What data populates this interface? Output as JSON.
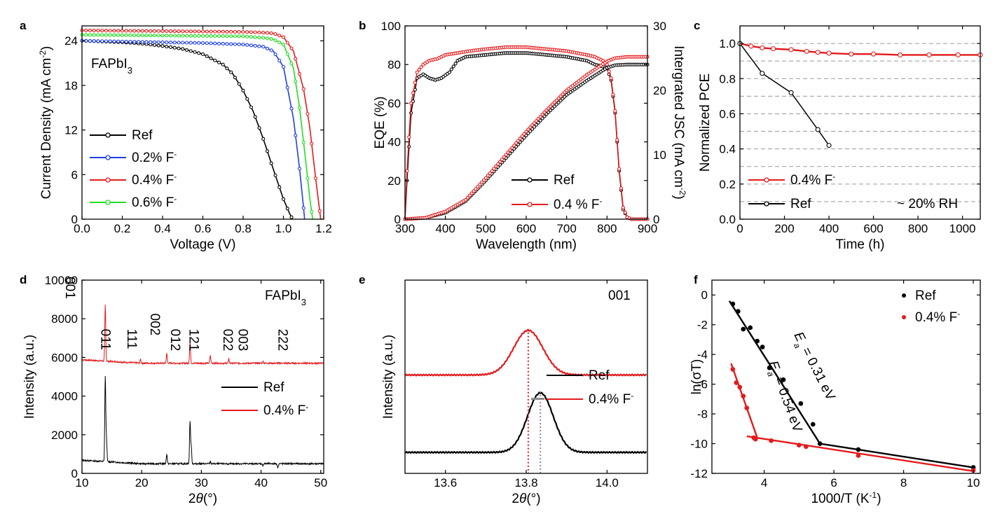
{
  "colors": {
    "black": "#000000",
    "red": "#e41a1c",
    "blue": "#1f3fe0",
    "green": "#22dd22",
    "gray": "#8c8c8c"
  },
  "chart_data": [
    {
      "panel": "a",
      "type": "line",
      "annotation": "FAPbI3",
      "xlabel": "Voltage (V)",
      "ylabel": "Current Density (mA cm-2)",
      "xlim": [
        0.0,
        1.2
      ],
      "ylim": [
        0,
        26
      ],
      "xticks": [
        "0.0",
        "0.2",
        "0.4",
        "0.6",
        "0.8",
        "1.0",
        "1.2"
      ],
      "yticks": [
        "0",
        "6",
        "12",
        "18",
        "24"
      ],
      "legend_position": "bottom-left",
      "series": [
        {
          "name": "Ref",
          "color": "black",
          "voc": 1.045,
          "x": [
            0.0,
            0.1,
            0.2,
            0.3,
            0.4,
            0.5,
            0.6,
            0.7,
            0.75,
            0.8,
            0.85,
            0.9,
            0.95,
            1.0,
            1.03,
            1.045
          ],
          "y": [
            24.0,
            23.9,
            23.8,
            23.6,
            23.3,
            22.9,
            22.2,
            20.8,
            19.5,
            17.3,
            14.5,
            10.8,
            6.7,
            2.7,
            0.8,
            0.0
          ]
        },
        {
          "name": "0.2% F-",
          "color": "blue",
          "voc": 1.105,
          "x": [
            0.0,
            0.2,
            0.4,
            0.6,
            0.8,
            0.9,
            0.95,
            1.0,
            1.05,
            1.08,
            1.1,
            1.105
          ],
          "y": [
            24.0,
            23.9,
            23.8,
            23.7,
            23.5,
            23.2,
            22.6,
            20.5,
            13.5,
            6.8,
            1.5,
            0.0
          ]
        },
        {
          "name": "0.4% F-",
          "color": "red",
          "voc": 1.185,
          "x": [
            0.0,
            0.2,
            0.4,
            0.6,
            0.8,
            0.9,
            0.95,
            1.0,
            1.05,
            1.1,
            1.13,
            1.16,
            1.185
          ],
          "y": [
            25.4,
            25.35,
            25.3,
            25.25,
            25.2,
            25.1,
            25.0,
            24.5,
            22.6,
            17.5,
            12.5,
            5.5,
            0.0
          ]
        },
        {
          "name": "0.6% F-",
          "color": "green",
          "voc": 1.145,
          "x": [
            0.0,
            0.2,
            0.4,
            0.6,
            0.8,
            0.9,
            0.95,
            1.0,
            1.05,
            1.08,
            1.11,
            1.13,
            1.145
          ],
          "y": [
            24.8,
            24.75,
            24.7,
            24.65,
            24.6,
            24.4,
            24.2,
            23.5,
            20.3,
            15.0,
            8.0,
            3.0,
            0.0
          ]
        }
      ]
    },
    {
      "panel": "b",
      "type": "line",
      "xlabel": "Wavelength (nm)",
      "ylabel": "EQE (%)",
      "y2label": "Intergrated JSC (mA cm-2)",
      "xlim": [
        300,
        900
      ],
      "ylim": [
        0,
        100
      ],
      "y2lim": [
        0,
        30
      ],
      "xticks": [
        "300",
        "400",
        "500",
        "600",
        "700",
        "800",
        "900"
      ],
      "yticks": [
        "0",
        "20",
        "40",
        "60",
        "80",
        "100"
      ],
      "y2ticks": [
        "0",
        "10",
        "20",
        "30"
      ],
      "legend_position": "bottom-center",
      "series": [
        {
          "name": "Ref",
          "color": "black",
          "axis": "left",
          "x": [
            300,
            305,
            315,
            330,
            345,
            360,
            375,
            390,
            410,
            430,
            450,
            500,
            550,
            600,
            650,
            700,
            750,
            770,
            790,
            800,
            810,
            820,
            830,
            840,
            850,
            860
          ],
          "y": [
            0,
            20,
            55,
            73,
            75,
            73,
            72,
            73,
            76,
            82,
            84,
            85,
            86,
            86,
            85,
            84,
            82,
            80,
            79,
            78,
            72,
            55,
            25,
            5,
            1,
            0
          ]
        },
        {
          "name": "0.4 % F-",
          "color": "red",
          "axis": "left",
          "x": [
            300,
            305,
            315,
            330,
            345,
            360,
            380,
            400,
            430,
            460,
            500,
            550,
            600,
            650,
            700,
            750,
            770,
            790,
            800,
            810,
            820,
            830,
            840,
            850,
            860
          ],
          "y": [
            0,
            25,
            60,
            76,
            80,
            82,
            83,
            85,
            86,
            87,
            88,
            89,
            89,
            88,
            87,
            85,
            84,
            82,
            80,
            73,
            56,
            26,
            6,
            1,
            0
          ]
        },
        {
          "name": "Ref integrated",
          "color": "black",
          "axis": "right",
          "x": [
            300,
            350,
            400,
            450,
            500,
            550,
            600,
            650,
            700,
            750,
            800,
            820,
            850,
            900
          ],
          "y": [
            0,
            0.2,
            1.0,
            2.8,
            6.0,
            9.5,
            13.0,
            16.3,
            19.3,
            21.5,
            23.5,
            23.9,
            24.0,
            24.0
          ]
        },
        {
          "name": "0.4 % F- integrated",
          "color": "red",
          "axis": "right",
          "x": [
            300,
            350,
            400,
            450,
            500,
            550,
            600,
            650,
            700,
            750,
            800,
            820,
            850,
            900
          ],
          "y": [
            0,
            0.2,
            1.2,
            3.0,
            6.4,
            10.0,
            13.6,
            16.9,
            20.0,
            22.4,
            24.5,
            25.0,
            25.2,
            25.2
          ]
        }
      ]
    },
    {
      "panel": "c",
      "type": "line",
      "xlabel": "Time (h)",
      "ylabel": "Normalized PCE",
      "annotation": "~ 20% RH",
      "xlim": [
        0,
        1080
      ],
      "ylim": [
        0.0,
        1.1
      ],
      "xticks": [
        "0",
        "200",
        "400",
        "600",
        "800",
        "1000"
      ],
      "yticks": [
        "0.0",
        "0.2",
        "0.4",
        "0.6",
        "0.8",
        "1.0"
      ],
      "grid": true,
      "legend_position": "bottom-left",
      "series": [
        {
          "name": "0.4% F-",
          "color": "red",
          "x": [
            0,
            50,
            100,
            150,
            230,
            300,
            350,
            400,
            500,
            600,
            720,
            850,
            980,
            1080
          ],
          "y": [
            1.0,
            0.985,
            0.975,
            0.97,
            0.965,
            0.955,
            0.95,
            0.945,
            0.94,
            0.94,
            0.935,
            0.935,
            0.935,
            0.935
          ]
        },
        {
          "name": "Ref",
          "color": "black",
          "x": [
            0,
            100,
            230,
            350,
            400
          ],
          "y": [
            1.0,
            0.83,
            0.72,
            0.51,
            0.42
          ]
        }
      ]
    },
    {
      "panel": "d",
      "type": "line",
      "annotation": "FAPbI3",
      "xlabel": "2θ(°)",
      "ylabel": "Intensity (a.u.)",
      "xlim": [
        10,
        50.5
      ],
      "ylim": [
        0,
        10000
      ],
      "xticks": [
        "10",
        "20",
        "30",
        "40",
        "50"
      ],
      "yticks": [
        "0",
        "2000",
        "4000",
        "6000",
        "8000",
        "10000"
      ],
      "peak_labels": [
        {
          "label": "001",
          "x": 13.9
        },
        {
          "label": "011",
          "x": 19.8
        },
        {
          "label": "111",
          "x": 24.2
        },
        {
          "label": "002",
          "x": 28.1
        },
        {
          "label": "012",
          "x": 31.5
        },
        {
          "label": "121",
          "x": 34.6
        },
        {
          "label": "022",
          "x": 40.3
        },
        {
          "label": "003",
          "x": 42.8
        },
        {
          "label": "222",
          "x": 49.5
        }
      ],
      "legend_position": "center-right",
      "series": [
        {
          "name": "Ref",
          "color": "black",
          "baseline": 500,
          "peaks": [
            [
              13.9,
              4900
            ],
            [
              14.1,
              1700
            ],
            [
              19.8,
              500
            ],
            [
              24.2,
              1000
            ],
            [
              28.1,
              2700
            ],
            [
              28.3,
              1400
            ],
            [
              31.5,
              600
            ],
            [
              34.6,
              450
            ],
            [
              40.3,
              400
            ],
            [
              42.8,
              300
            ]
          ]
        },
        {
          "name": "0.4% F-",
          "color": "red",
          "baseline": 5700,
          "peaks": [
            [
              13.9,
              8600
            ],
            [
              19.8,
              5900
            ],
            [
              24.2,
              6200
            ],
            [
              28.1,
              6800
            ],
            [
              31.5,
              6100
            ],
            [
              34.6,
              5900
            ],
            [
              40.3,
              5800
            ],
            [
              42.8,
              5700
            ]
          ]
        }
      ]
    },
    {
      "panel": "e",
      "type": "line",
      "annotation": "001",
      "xlabel": "2θ(°)",
      "ylabel": "Intensity (a.u.)",
      "xlim": [
        13.5,
        14.1
      ],
      "xticks": [
        "13.6",
        "13.8",
        "14.0"
      ],
      "legend_position": "center-right",
      "series": [
        {
          "name": "Ref",
          "color": "black",
          "center": 13.835,
          "fwhm": 0.075,
          "offset": 0.0,
          "height": 1.0
        },
        {
          "name": "0.4% F-",
          "color": "red",
          "center": 13.805,
          "fwhm": 0.085,
          "offset": 1.3,
          "height": 0.75
        }
      ]
    },
    {
      "panel": "f",
      "type": "scatter",
      "xlabel": "1000/T (K-1)",
      "ylabel": "ln(σT)",
      "xlim": [
        2.5,
        10.2
      ],
      "ylim": [
        -12,
        1
      ],
      "xticks": [
        "4",
        "6",
        "8",
        "10"
      ],
      "yticks": [
        "0",
        "-2",
        "-4",
        "-6",
        "-8",
        "-10",
        "-12"
      ],
      "annotations": [
        "E_a = 0.31 eV",
        "E_a = 0.54 eV"
      ],
      "legend_position": "top-right",
      "series": [
        {
          "name": "Ref",
          "color": "black",
          "x": [
            3.1,
            3.25,
            3.4,
            3.6,
            3.8,
            3.95,
            4.15,
            4.55,
            5.05,
            5.4,
            5.6,
            6.7,
            10.0
          ],
          "y": [
            -0.6,
            -1.1,
            -2.3,
            -2.2,
            -3.1,
            -3.5,
            -4.9,
            -5.7,
            -7.3,
            -8.7,
            -10.0,
            -10.4,
            -11.6
          ]
        },
        {
          "name": "0.4% F-",
          "color": "red",
          "x": [
            3.1,
            3.2,
            3.3,
            3.4,
            3.5,
            3.7,
            3.75,
            4.2,
            5.0,
            5.2,
            6.7,
            10.0
          ],
          "y": [
            -5.0,
            -5.9,
            -6.2,
            -6.8,
            -7.6,
            -9.6,
            -9.7,
            -9.8,
            -10.1,
            -10.2,
            -10.8,
            -11.8
          ]
        }
      ],
      "fits": [
        {
          "color": "black",
          "x": [
            3.0,
            5.6
          ],
          "y": [
            -0.4,
            -10.0
          ]
        },
        {
          "color": "black",
          "x": [
            5.6,
            10.0
          ],
          "y": [
            -10.0,
            -11.6
          ]
        },
        {
          "color": "red",
          "x": [
            3.05,
            3.8
          ],
          "y": [
            -4.6,
            -9.6
          ]
        },
        {
          "color": "red",
          "x": [
            3.5,
            10.0
          ],
          "y": [
            -9.5,
            -11.85
          ]
        }
      ]
    }
  ]
}
